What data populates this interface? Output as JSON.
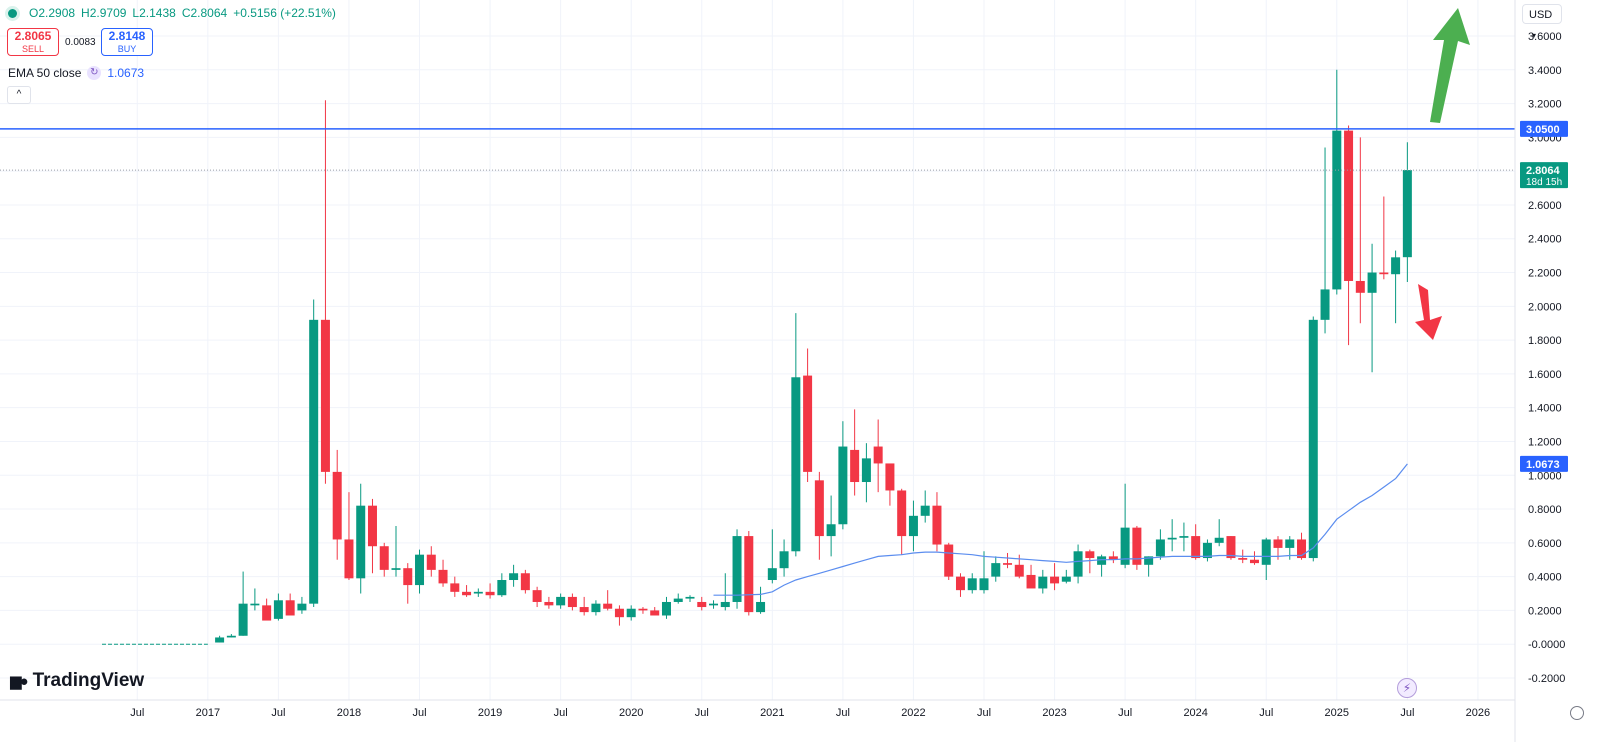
{
  "header": {
    "ohlc": {
      "open": "O2.2908",
      "high": "H2.9709",
      "low": "L2.1438",
      "close": "C2.8064",
      "change": "+0.5156 (+22.51%)"
    },
    "sell": {
      "price": "2.8065",
      "label": "SELL"
    },
    "spread": "0.0083",
    "buy": {
      "price": "2.8148",
      "label": "BUY"
    },
    "indicator": {
      "name": "EMA 50 close",
      "value": "1.0673"
    },
    "collapse_glyph": "^",
    "currency": "USD"
  },
  "brand": "TradingView",
  "colors": {
    "up": "#089981",
    "down": "#f23645",
    "ema": "#5b8def",
    "level": "#2962ff",
    "arrow_up": "#4caf50",
    "arrow_down": "#f23645"
  },
  "chart_data": {
    "type": "candlestick",
    "interval": "monthly",
    "ylim": [
      -0.2,
      3.7
    ],
    "y_ticks": [
      "3.6000",
      "3.4000",
      "3.2000",
      "3.0000",
      "2.8000",
      "2.6000",
      "2.4000",
      "2.2000",
      "2.0000",
      "1.8000",
      "1.6000",
      "1.4000",
      "1.2000",
      "1.0000",
      "0.8000",
      "0.6000",
      "0.4000",
      "0.2000",
      "-0.0000",
      "-0.2000"
    ],
    "x_ticks": [
      "Jul",
      "2017",
      "Jul",
      "2018",
      "Jul",
      "2019",
      "Jul",
      "2020",
      "Jul",
      "2021",
      "Jul",
      "2022",
      "Jul",
      "2023",
      "Jul",
      "2024",
      "Jul",
      "2025",
      "Jul",
      "2026"
    ],
    "price_labels": [
      {
        "text": "3.0500",
        "value": 3.05,
        "kind": "level"
      },
      {
        "text": "2.8064",
        "sub": "18d 15h",
        "value": 2.8064,
        "kind": "last"
      },
      {
        "text": "1.0673",
        "value": 1.0673,
        "kind": "ema"
      }
    ],
    "horizontal_line": 3.05,
    "flat_start_month": 0,
    "flat_end_month": 9,
    "candles": [
      [
        10,
        0.01,
        0.05,
        0.01,
        0.04
      ],
      [
        11,
        0.04,
        0.06,
        0.04,
        0.05
      ],
      [
        12,
        0.05,
        0.43,
        0.05,
        0.24
      ],
      [
        13,
        0.23,
        0.33,
        0.2,
        0.24
      ],
      [
        14,
        0.23,
        0.27,
        0.17,
        0.14
      ],
      [
        15,
        0.15,
        0.3,
        0.14,
        0.26
      ],
      [
        16,
        0.26,
        0.3,
        0.18,
        0.17
      ],
      [
        17,
        0.2,
        0.28,
        0.18,
        0.24
      ],
      [
        18,
        0.24,
        2.04,
        0.22,
        1.92
      ],
      [
        19,
        1.92,
        3.22,
        0.95,
        1.02
      ],
      [
        20,
        1.02,
        1.15,
        0.5,
        0.62
      ],
      [
        21,
        0.62,
        0.9,
        0.38,
        0.39
      ],
      [
        22,
        0.39,
        0.95,
        0.3,
        0.82
      ],
      [
        23,
        0.82,
        0.86,
        0.42,
        0.58
      ],
      [
        24,
        0.58,
        0.6,
        0.4,
        0.44
      ],
      [
        25,
        0.44,
        0.7,
        0.4,
        0.45
      ],
      [
        26,
        0.45,
        0.48,
        0.24,
        0.35
      ],
      [
        27,
        0.35,
        0.56,
        0.3,
        0.53
      ],
      [
        28,
        0.53,
        0.58,
        0.4,
        0.44
      ],
      [
        29,
        0.44,
        0.5,
        0.34,
        0.36
      ],
      [
        30,
        0.36,
        0.4,
        0.28,
        0.31
      ],
      [
        31,
        0.31,
        0.35,
        0.28,
        0.29
      ],
      [
        32,
        0.3,
        0.33,
        0.28,
        0.31
      ],
      [
        33,
        0.31,
        0.36,
        0.27,
        0.29
      ],
      [
        34,
        0.29,
        0.42,
        0.28,
        0.38
      ],
      [
        35,
        0.38,
        0.47,
        0.34,
        0.42
      ],
      [
        36,
        0.42,
        0.44,
        0.3,
        0.32
      ],
      [
        37,
        0.32,
        0.34,
        0.22,
        0.25
      ],
      [
        38,
        0.25,
        0.28,
        0.21,
        0.23
      ],
      [
        39,
        0.23,
        0.3,
        0.21,
        0.28
      ],
      [
        40,
        0.28,
        0.3,
        0.2,
        0.22
      ],
      [
        41,
        0.22,
        0.28,
        0.17,
        0.19
      ],
      [
        42,
        0.19,
        0.26,
        0.17,
        0.24
      ],
      [
        43,
        0.24,
        0.32,
        0.2,
        0.21
      ],
      [
        44,
        0.21,
        0.23,
        0.11,
        0.16
      ],
      [
        45,
        0.16,
        0.23,
        0.14,
        0.21
      ],
      [
        46,
        0.21,
        0.22,
        0.18,
        0.2
      ],
      [
        47,
        0.2,
        0.22,
        0.17,
        0.17
      ],
      [
        48,
        0.17,
        0.28,
        0.15,
        0.25
      ],
      [
        49,
        0.25,
        0.3,
        0.24,
        0.27
      ],
      [
        50,
        0.27,
        0.29,
        0.25,
        0.28
      ],
      [
        51,
        0.25,
        0.28,
        0.2,
        0.22
      ],
      [
        52,
        0.23,
        0.26,
        0.21,
        0.24
      ],
      [
        53,
        0.22,
        0.42,
        0.2,
        0.25
      ],
      [
        54,
        0.25,
        0.68,
        0.21,
        0.64
      ],
      [
        55,
        0.64,
        0.67,
        0.17,
        0.19
      ],
      [
        56,
        0.19,
        0.34,
        0.18,
        0.25
      ],
      [
        57,
        0.38,
        0.68,
        0.36,
        0.45
      ],
      [
        58,
        0.45,
        0.62,
        0.4,
        0.55
      ],
      [
        59,
        0.55,
        1.96,
        0.52,
        1.58
      ],
      [
        60,
        1.59,
        1.75,
        0.96,
        1.02
      ],
      [
        61,
        0.97,
        1.02,
        0.5,
        0.64
      ],
      [
        62,
        0.64,
        0.88,
        0.52,
        0.71
      ],
      [
        63,
        0.71,
        1.32,
        0.68,
        1.17
      ],
      [
        64,
        1.15,
        1.39,
        0.88,
        0.96
      ],
      [
        65,
        0.96,
        1.19,
        0.84,
        1.1
      ],
      [
        66,
        1.17,
        1.33,
        0.9,
        1.07
      ],
      [
        67,
        1.07,
        1.05,
        0.82,
        0.91
      ],
      [
        68,
        0.91,
        0.92,
        0.53,
        0.64
      ],
      [
        69,
        0.64,
        0.85,
        0.55,
        0.76
      ],
      [
        70,
        0.76,
        0.91,
        0.72,
        0.82
      ],
      [
        71,
        0.82,
        0.9,
        0.55,
        0.59
      ],
      [
        72,
        0.59,
        0.6,
        0.38,
        0.4
      ],
      [
        73,
        0.4,
        0.42,
        0.28,
        0.32
      ],
      [
        74,
        0.32,
        0.42,
        0.3,
        0.39
      ],
      [
        75,
        0.32,
        0.55,
        0.3,
        0.39
      ],
      [
        76,
        0.4,
        0.52,
        0.37,
        0.48
      ],
      [
        77,
        0.48,
        0.54,
        0.45,
        0.47
      ],
      [
        78,
        0.47,
        0.53,
        0.39,
        0.4
      ],
      [
        79,
        0.41,
        0.47,
        0.34,
        0.33
      ],
      [
        80,
        0.33,
        0.44,
        0.3,
        0.4
      ],
      [
        81,
        0.4,
        0.48,
        0.32,
        0.36
      ],
      [
        82,
        0.37,
        0.44,
        0.36,
        0.4
      ],
      [
        83,
        0.4,
        0.59,
        0.36,
        0.55
      ],
      [
        84,
        0.55,
        0.56,
        0.42,
        0.51
      ],
      [
        85,
        0.47,
        0.53,
        0.4,
        0.52
      ],
      [
        86,
        0.52,
        0.55,
        0.48,
        0.5
      ],
      [
        87,
        0.47,
        0.95,
        0.45,
        0.69
      ],
      [
        88,
        0.69,
        0.7,
        0.44,
        0.47
      ],
      [
        89,
        0.47,
        0.52,
        0.4,
        0.52
      ],
      [
        90,
        0.52,
        0.68,
        0.5,
        0.62
      ],
      [
        91,
        0.62,
        0.74,
        0.55,
        0.63
      ],
      [
        92,
        0.63,
        0.72,
        0.55,
        0.64
      ],
      [
        93,
        0.64,
        0.71,
        0.5,
        0.51
      ],
      [
        94,
        0.51,
        0.62,
        0.49,
        0.6
      ],
      [
        95,
        0.6,
        0.74,
        0.58,
        0.63
      ],
      [
        96,
        0.64,
        0.64,
        0.5,
        0.51
      ],
      [
        97,
        0.51,
        0.56,
        0.48,
        0.5
      ],
      [
        98,
        0.5,
        0.55,
        0.47,
        0.48
      ],
      [
        99,
        0.47,
        0.63,
        0.38,
        0.62
      ],
      [
        100,
        0.62,
        0.64,
        0.5,
        0.57
      ],
      [
        101,
        0.57,
        0.64,
        0.5,
        0.62
      ],
      [
        102,
        0.62,
        0.66,
        0.5,
        0.51
      ],
      [
        103,
        0.51,
        1.94,
        0.49,
        1.92
      ],
      [
        104,
        1.92,
        2.94,
        1.84,
        2.1
      ],
      [
        105,
        2.1,
        3.4,
        2.07,
        3.04
      ],
      [
        106,
        3.04,
        3.07,
        1.77,
        2.15
      ],
      [
        107,
        2.15,
        3.0,
        1.9,
        2.08
      ],
      [
        108,
        2.08,
        2.37,
        1.61,
        2.2
      ],
      [
        109,
        2.2,
        2.65,
        2.16,
        2.19
      ],
      [
        110,
        2.19,
        2.33,
        1.9,
        2.29
      ],
      [
        111,
        2.2908,
        2.9709,
        2.1438,
        2.8064
      ]
    ],
    "ema": [
      [
        52,
        0.29
      ],
      [
        54,
        0.29
      ],
      [
        56,
        0.295
      ],
      [
        57,
        0.31
      ],
      [
        58,
        0.35
      ],
      [
        59,
        0.38
      ],
      [
        60,
        0.4
      ],
      [
        61,
        0.42
      ],
      [
        62,
        0.44
      ],
      [
        63,
        0.46
      ],
      [
        64,
        0.48
      ],
      [
        65,
        0.5
      ],
      [
        66,
        0.52
      ],
      [
        67,
        0.525
      ],
      [
        68,
        0.53
      ],
      [
        69,
        0.54
      ],
      [
        70,
        0.545
      ],
      [
        71,
        0.545
      ],
      [
        72,
        0.54
      ],
      [
        73,
        0.535
      ],
      [
        74,
        0.53
      ],
      [
        75,
        0.52
      ],
      [
        76,
        0.515
      ],
      [
        77,
        0.51
      ],
      [
        78,
        0.505
      ],
      [
        79,
        0.5
      ],
      [
        80,
        0.495
      ],
      [
        81,
        0.49
      ],
      [
        82,
        0.485
      ],
      [
        83,
        0.49
      ],
      [
        84,
        0.495
      ],
      [
        85,
        0.5
      ],
      [
        86,
        0.5
      ],
      [
        87,
        0.505
      ],
      [
        88,
        0.505
      ],
      [
        89,
        0.51
      ],
      [
        90,
        0.515
      ],
      [
        91,
        0.52
      ],
      [
        92,
        0.52
      ],
      [
        93,
        0.52
      ],
      [
        94,
        0.52
      ],
      [
        95,
        0.525
      ],
      [
        96,
        0.525
      ],
      [
        97,
        0.52
      ],
      [
        98,
        0.52
      ],
      [
        99,
        0.52
      ],
      [
        100,
        0.52
      ],
      [
        101,
        0.525
      ],
      [
        102,
        0.525
      ],
      [
        103,
        0.57
      ],
      [
        104,
        0.65
      ],
      [
        105,
        0.74
      ],
      [
        106,
        0.79
      ],
      [
        107,
        0.84
      ],
      [
        108,
        0.88
      ],
      [
        109,
        0.93
      ],
      [
        110,
        0.98
      ],
      [
        111,
        1.0673
      ]
    ]
  }
}
